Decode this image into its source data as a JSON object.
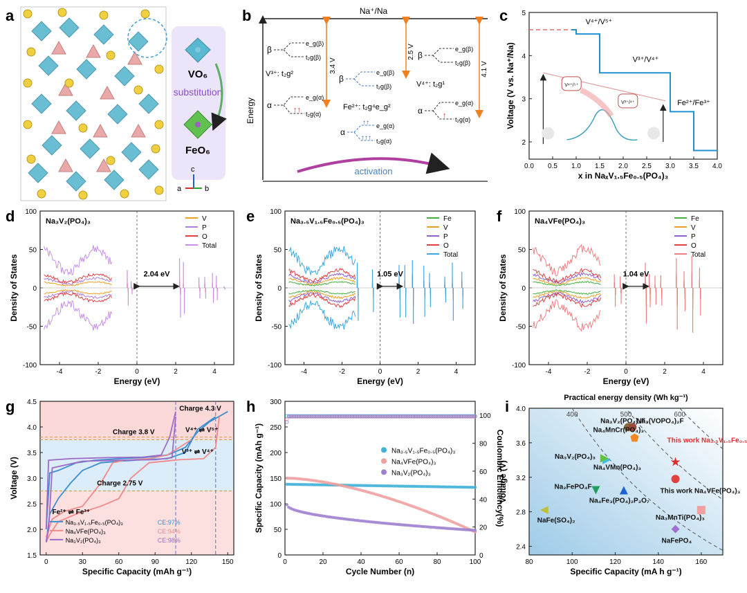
{
  "panel_letters": [
    "a",
    "b",
    "c",
    "d",
    "e",
    "f",
    "g",
    "h",
    "i"
  ],
  "panel_a": {
    "vo6_label": "VO₆",
    "substitution_label": "substitution",
    "feo6_label": "FeO₆",
    "axis_c": "c",
    "axis_a": "a",
    "axis_b": "b"
  },
  "panel_b": {
    "top_label": "Na⁺/Na",
    "energy_label": "Energy",
    "v3_label": "V³⁺: t₂g²",
    "fe2_label": "Fe²⁺: t₂g⁴e_g²",
    "v4_label": "V⁴⁺: t₂g¹",
    "volt_1": "3.4 V",
    "volt_2": "2.5 V",
    "volt_3": "4.1 V",
    "beta": "β",
    "alpha": "α",
    "eg_beta": "e_g(β)",
    "t2g_beta": "t₂g(β)",
    "eg_alpha": "e_g(α)",
    "t2g_alpha": "t₂g(α)",
    "activation_label": "activation"
  },
  "panel_c": {
    "chart_data": {
      "type": "line",
      "ylabel": "Voltage (V vs. Na⁺/Na)",
      "xlabel": "x in NaₓV₁.₅Fe₀.₅(PO₄)₃",
      "xlim": [
        0,
        4.0
      ],
      "ylim": [
        1.6,
        5.0
      ],
      "xticks": [
        "0.0",
        "0.5",
        "1.0",
        "1.5",
        "2.0",
        "2.5",
        "3.0",
        "3.5",
        "4.0"
      ],
      "yticks": [
        "2",
        "3",
        "4",
        "5"
      ],
      "step_x": [
        0.9,
        1.0,
        1.0,
        1.5,
        1.5,
        3.0,
        3.0,
        3.5,
        3.5,
        4.0
      ],
      "step_y": [
        4.6,
        4.6,
        4.5,
        4.5,
        3.6,
        3.6,
        2.7,
        2.7,
        1.8,
        1.8
      ],
      "dashed_level": 4.6,
      "annotations": [
        "V⁴⁺/V⁵⁺",
        "V³⁺/V⁴⁺",
        "Fe²⁺/Fe³⁺"
      ],
      "inset_labels": [
        "V⁴⁺/⁵⁺",
        "V³⁺/⁴⁺"
      ]
    }
  },
  "panel_d": {
    "chart_data": {
      "type": "line",
      "title": "Na₃V₂(PO₄)₃",
      "xlabel": "Energy (eV)",
      "ylabel": "Density of States",
      "xlim": [
        -5,
        5
      ],
      "ylim": [
        -100,
        100
      ],
      "xticks": [
        "-4",
        "-2",
        "0",
        "2",
        "4"
      ],
      "yticks": [
        "-100",
        "-50",
        "0",
        "50",
        "100"
      ],
      "legend": [
        "V",
        "P",
        "O",
        "Total"
      ],
      "gap_label": "2.04 eV",
      "gap": [
        0,
        2.04
      ]
    }
  },
  "panel_e": {
    "chart_data": {
      "type": "line",
      "title": "Na₃.₅V₁.₅Fe₀.₅(PO₄)₃",
      "xlabel": "Energy (eV)",
      "ylabel": "Density of States",
      "xlim": [
        -5,
        5
      ],
      "ylim": [
        -100,
        100
      ],
      "xticks": [
        "-4",
        "-2",
        "0",
        "2",
        "4"
      ],
      "yticks": [
        "-100",
        "-50",
        "0",
        "50",
        "100"
      ],
      "legend": [
        "Fe",
        "V",
        "P",
        "O",
        "Total"
      ],
      "gap_label": "1.05 eV",
      "gap": [
        0,
        1.05
      ]
    }
  },
  "panel_f": {
    "chart_data": {
      "type": "line",
      "title": "Na₄VFe(PO₄)₃",
      "xlabel": "Energy (eV)",
      "ylabel": "Density of States",
      "xlim": [
        -5,
        5
      ],
      "ylim": [
        -100,
        100
      ],
      "xticks": [
        "-4",
        "-2",
        "0",
        "2",
        "4"
      ],
      "yticks": [
        "-100",
        "-50",
        "0",
        "50",
        "100"
      ],
      "legend": [
        "Fe",
        "V",
        "P",
        "O",
        "Total"
      ],
      "gap_label": "1.04 eV",
      "gap": [
        0,
        1.04
      ]
    }
  },
  "panel_g": {
    "chart_data": {
      "type": "line",
      "xlabel": "Specific Capacity (mAh g⁻¹)",
      "ylabel": "Voltage (V)",
      "xlim": [
        -5,
        155
      ],
      "ylim": [
        1.5,
        4.5
      ],
      "xticks": [
        "0",
        "30",
        "60",
        "90",
        "120",
        "150"
      ],
      "yticks": [
        "1.5",
        "2.0",
        "2.5",
        "3.0",
        "3.5",
        "4.0",
        "4.5"
      ],
      "annotations": [
        "Charge 4.3 V",
        "Charge 3.8 V",
        "Charge 2.75 V",
        "V⁴⁺ ⇌ V⁵⁺",
        "V³⁺ ⇌ V⁴⁺",
        "Fe²⁺ ⇌ Fe³⁺"
      ],
      "series": [
        {
          "name": "Na₃.₅V₁.₅Fe₀.₅(PO₄)₃",
          "ce": "CE:97%",
          "color": "#3a8fd0",
          "charge": [
            [
              0,
              2.0
            ],
            [
              3,
              3.1
            ],
            [
              10,
              3.15
            ],
            [
              25,
              3.3
            ],
            [
              40,
              3.35
            ],
            [
              60,
              3.38
            ],
            [
              80,
              3.4
            ],
            [
              100,
              3.45
            ],
            [
              115,
              3.6
            ],
            [
              125,
              3.9
            ],
            [
              135,
              4.1
            ],
            [
              150,
              4.3
            ]
          ],
          "discharge": [
            [
              140,
              4.2
            ],
            [
              125,
              3.95
            ],
            [
              115,
              3.5
            ],
            [
              100,
              3.38
            ],
            [
              80,
              3.36
            ],
            [
              60,
              3.33
            ],
            [
              45,
              3.3
            ],
            [
              30,
              3.15
            ],
            [
              20,
              2.9
            ],
            [
              10,
              2.6
            ],
            [
              3,
              2.3
            ],
            [
              0,
              1.75
            ]
          ]
        },
        {
          "name": "Na₄VFe(PO₄)₃",
          "ce": "CE:94%",
          "color": "#f08a8a",
          "charge": [
            [
              0,
              1.85
            ],
            [
              5,
              2.2
            ],
            [
              15,
              2.35
            ],
            [
              30,
              2.45
            ],
            [
              45,
              2.9
            ],
            [
              55,
              3.3
            ],
            [
              65,
              3.35
            ],
            [
              85,
              3.38
            ],
            [
              100,
              3.45
            ],
            [
              110,
              3.6
            ],
            [
              120,
              3.75
            ]
          ],
          "discharge": [
            [
              143,
              4.2
            ],
            [
              140,
              3.6
            ],
            [
              130,
              3.38
            ],
            [
              110,
              3.36
            ],
            [
              85,
              3.3
            ],
            [
              70,
              3.0
            ],
            [
              60,
              2.6
            ],
            [
              45,
              2.45
            ],
            [
              25,
              2.3
            ],
            [
              10,
              2.15
            ],
            [
              3,
              1.9
            ],
            [
              0,
              1.75
            ]
          ]
        },
        {
          "name": "Na₃V₂(PO₄)₃",
          "ce": "CE:98%",
          "color": "#9e6ac8",
          "charge": [
            [
              0,
              2.0
            ],
            [
              2,
              3.35
            ],
            [
              20,
              3.38
            ],
            [
              50,
              3.4
            ],
            [
              80,
              3.41
            ],
            [
              95,
              3.45
            ],
            [
              102,
              3.8
            ],
            [
              107,
              4.3
            ]
          ],
          "discharge": [
            [
              107,
              4.2
            ],
            [
              104,
              3.4
            ],
            [
              90,
              3.36
            ],
            [
              60,
              3.35
            ],
            [
              30,
              3.33
            ],
            [
              5,
              3.2
            ],
            [
              2,
              2.0
            ],
            [
              0,
              1.75
            ]
          ]
        }
      ],
      "reference_levels": [
        3.8,
        3.75,
        2.75
      ]
    }
  },
  "panel_h": {
    "chart_data": {
      "type": "scatter",
      "xlabel": "Cycle Number (n)",
      "ylabel": "Specific Capacity (mAh g⁻¹)",
      "ylabel_right": "Coulombic Efficiency(%)",
      "xlim": [
        0,
        100
      ],
      "ylim": [
        0,
        300
      ],
      "ylim_right": [
        0,
        110
      ],
      "xticks": [
        "0",
        "20",
        "40",
        "60",
        "80",
        "100"
      ],
      "yticks": [
        "0",
        "50",
        "100",
        "150",
        "200",
        "250",
        "300"
      ],
      "yticks_right": [
        "0",
        "20",
        "40",
        "60",
        "80",
        "100"
      ],
      "series": [
        {
          "name": "Na₃.₅V₁.₅Fe₀.₅(PO₄)₃",
          "color": "#3fb0d8",
          "capacity_start": 138,
          "capacity_end": 132,
          "ce": 99.5
        },
        {
          "name": "Na₄VFe(PO₄)₃",
          "color": "#f0a0a0",
          "capacity_start": 150,
          "capacity_end": 45,
          "ce": 99.0
        },
        {
          "name": "Na₃V₂(PO₄)₃",
          "color": "#9e80d0",
          "capacity_start": 98,
          "capacity_end": 48,
          "ce": 99.2
        }
      ]
    }
  },
  "panel_i": {
    "chart_data": {
      "type": "scatter",
      "title": "Practical energy density (Wh kg⁻¹)",
      "xlabel": "Specific Capacity (mA h g⁻¹)",
      "ylabel": "Voltage (V)",
      "xlim": [
        80,
        170
      ],
      "ylim": [
        2.3,
        4.0
      ],
      "xticks": [
        "80",
        "100",
        "120",
        "140",
        "160"
      ],
      "yticks": [
        "2.4",
        "2.8",
        "3.2",
        "3.6",
        "4.0"
      ],
      "energy_ticks": [
        "400",
        "500",
        "600"
      ],
      "points": [
        {
          "label": "Na₃V₂(PO₄)₂F₃",
          "x": 126,
          "y": 3.78,
          "color": "#8a6a3a",
          "marker": "circle"
        },
        {
          "label": "Na₃(VOPO₄)₂F",
          "x": 128,
          "y": 3.78,
          "color": "#9a4a3a",
          "marker": "circle"
        },
        {
          "label": "Na₄MnCr(PO₄)₃",
          "x": 129,
          "y": 3.66,
          "color": "#f08a20",
          "marker": "pentagon"
        },
        {
          "label": "This work Na₃.₅V₁.₅Fe₀.₅(PO₄)₃",
          "x": 148,
          "y": 3.38,
          "color": "#d83030",
          "marker": "star"
        },
        {
          "label": "Na₃V₂(PO₄)₃",
          "x": 116,
          "y": 3.4,
          "color": "#40c0e0",
          "marker": "triangle-right"
        },
        {
          "label": "Na₄VMn(PO₄)₃",
          "x": 115,
          "y": 3.42,
          "color": "#60c040",
          "marker": "triangle-right"
        },
        {
          "label": "This work Na₄VFe(PO₄)₃",
          "x": 148,
          "y": 3.18,
          "color": "#e04040",
          "marker": "circle"
        },
        {
          "label": "Na₂FePO₄F",
          "x": 111,
          "y": 3.05,
          "color": "#20a060",
          "marker": "triangle-down"
        },
        {
          "label": "Na₄Fe₃(PO₄)₂P₂O₇",
          "x": 124,
          "y": 3.05,
          "color": "#2060d0",
          "marker": "triangle-up"
        },
        {
          "label": "NaFe(SO₄)₂",
          "x": 87,
          "y": 2.82,
          "color": "#c0c040",
          "marker": "triangle-left"
        },
        {
          "label": "Na₃MnTi(PO₄)₃",
          "x": 160,
          "y": 2.82,
          "color": "#f0a0a0",
          "marker": "square"
        },
        {
          "label": "NaFePO₄",
          "x": 148,
          "y": 2.6,
          "color": "#a070d0",
          "marker": "diamond"
        }
      ]
    }
  }
}
